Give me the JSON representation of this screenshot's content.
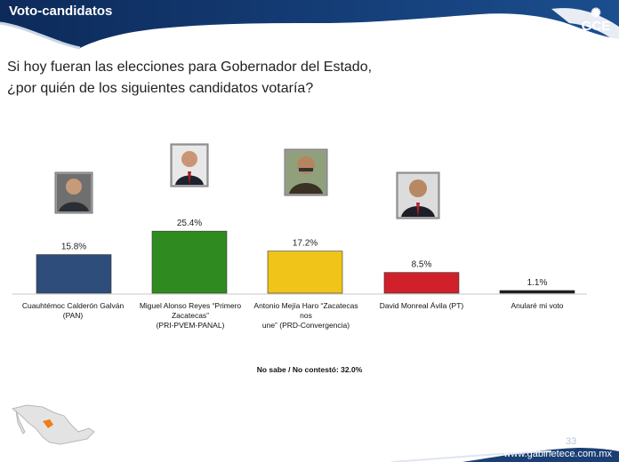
{
  "header": {
    "title": "Voto-candidatos",
    "logo_text": "GCE"
  },
  "question": {
    "line1": "Si hoy fueran las elecciones para Gobernador del Estado,",
    "line2": "¿por quién de los siguientes candidatos votaría?"
  },
  "chart_data": {
    "type": "bar",
    "title": "",
    "xlabel": "",
    "ylabel": "",
    "categories": [
      "Cuauhtémoc Calderón Galván\n(PAN)",
      "Miguel Alonso Reyes “Primero\nZacatecas”\n(PRI-PVEM-PANAL)",
      "Antonio Mejía Haro “Zacatecas nos\nune” (PRD-Convergencia)",
      "David Monreal Ávila (PT)",
      "Anularé mi voto"
    ],
    "values": [
      15.8,
      25.4,
      17.2,
      8.5,
      1.1
    ],
    "value_labels": [
      "15.8%",
      "25.4%",
      "17.2%",
      "8.5%",
      "1.1%"
    ],
    "colors": [
      "#2e4d7b",
      "#2f8a1f",
      "#f0c419",
      "#d0202a",
      "#1c1c1c"
    ],
    "ylim": [
      0,
      30
    ],
    "grid": false,
    "legend": "none"
  },
  "footnote": "No sabe / No contestó: 32.0%",
  "page_number": "33",
  "footer": {
    "url": "www.gabinetece.com.mx"
  }
}
